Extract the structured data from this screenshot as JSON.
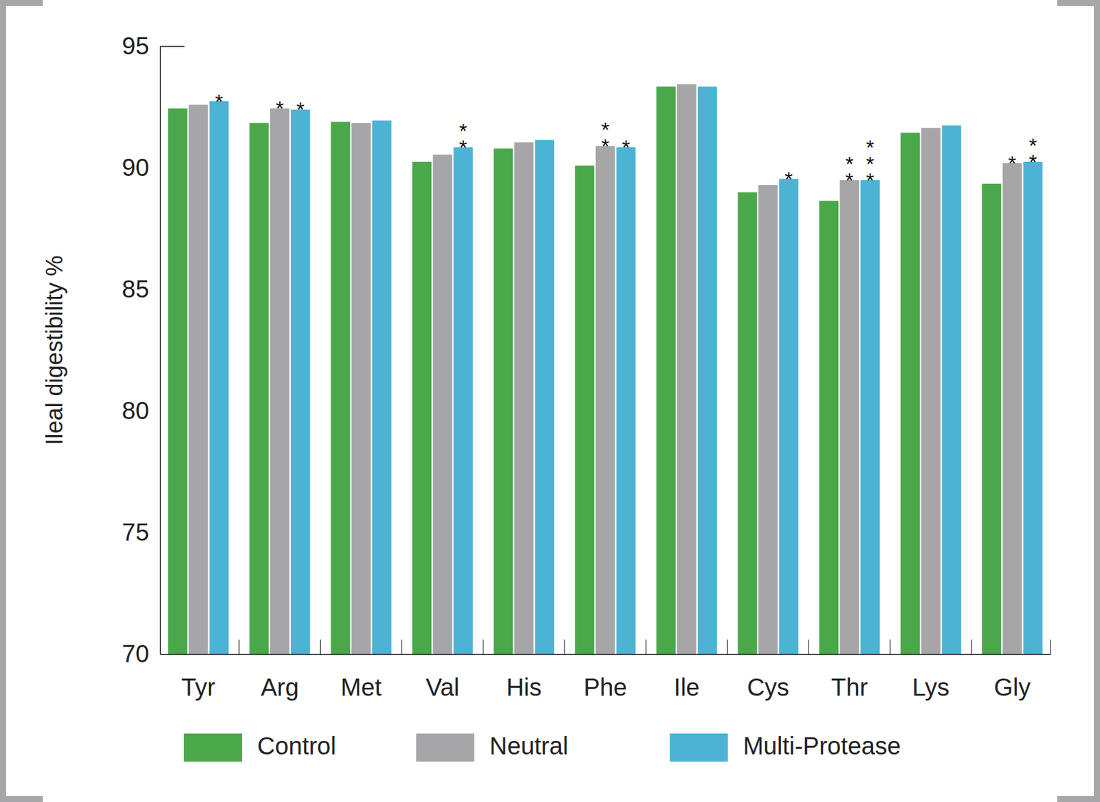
{
  "chart_data": {
    "type": "bar",
    "y_label": "Ileal digestibility %",
    "categories": [
      "Tyr",
      "Arg",
      "Met",
      "Val",
      "His",
      "Phe",
      "Ile",
      "Cys",
      "Thr",
      "Lys",
      "Gly"
    ],
    "series": [
      {
        "name": "Control",
        "color": "#4aa84a",
        "values": [
          92.45,
          91.85,
          91.9,
          90.25,
          90.8,
          90.1,
          93.35,
          89.0,
          88.65,
          91.45,
          89.35
        ],
        "significance": [
          null,
          null,
          null,
          null,
          null,
          null,
          null,
          null,
          null,
          null,
          null
        ]
      },
      {
        "name": "Neutral",
        "color": "#a6a6a9",
        "values": [
          92.6,
          92.45,
          91.85,
          90.55,
          91.05,
          90.9,
          93.45,
          89.3,
          89.5,
          91.65,
          90.2
        ],
        "significance": [
          null,
          "*",
          null,
          null,
          null,
          "**",
          null,
          null,
          "**",
          null,
          "*"
        ]
      },
      {
        "name": "Multi-Protease",
        "color": "#4db3d4",
        "values": [
          92.75,
          92.4,
          91.95,
          90.85,
          91.15,
          90.85,
          93.35,
          89.55,
          89.5,
          91.75,
          90.25
        ],
        "significance": [
          "*",
          "*",
          null,
          "**",
          null,
          "*",
          null,
          "*",
          "***",
          null,
          "**"
        ]
      }
    ],
    "ylim": [
      70,
      95
    ],
    "yticks": [
      70,
      75,
      80,
      85,
      90,
      95
    ],
    "legend": "bottom",
    "grid": false
  }
}
